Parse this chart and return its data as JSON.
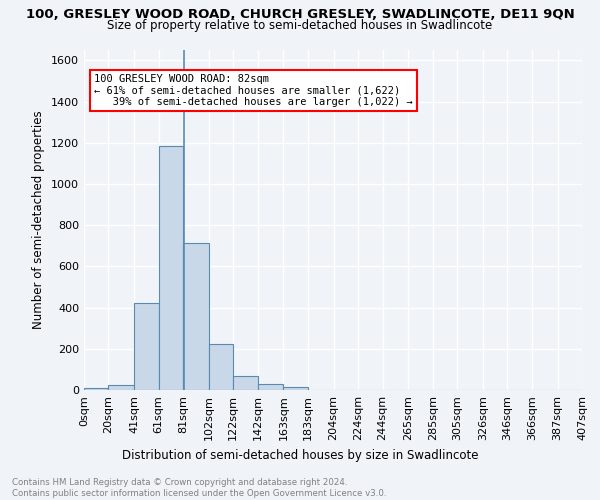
{
  "title": "100, GRESLEY WOOD ROAD, CHURCH GRESLEY, SWADLINCOTE, DE11 9QN",
  "subtitle": "Size of property relative to semi-detached houses in Swadlincote",
  "xlabel": "Distribution of semi-detached houses by size in Swadlincote",
  "ylabel": "Number of semi-detached properties",
  "footer_line1": "Contains HM Land Registry data © Crown copyright and database right 2024.",
  "footer_line2": "Contains public sector information licensed under the Open Government Licence v3.0.",
  "bar_left_edges": [
    0,
    20,
    41,
    61,
    81,
    102,
    122,
    142,
    163,
    183,
    204,
    224,
    244,
    265,
    285,
    305,
    326,
    346,
    366,
    387
  ],
  "bar_widths": [
    20,
    21,
    20,
    20,
    21,
    20,
    20,
    21,
    20,
    21,
    20,
    20,
    21,
    20,
    20,
    21,
    20,
    20,
    21,
    20
  ],
  "bar_heights": [
    10,
    25,
    420,
    1185,
    715,
    225,
    68,
    30,
    15,
    0,
    0,
    0,
    0,
    0,
    0,
    0,
    0,
    0,
    0,
    0
  ],
  "bar_color": "#c8d8e8",
  "bar_edgecolor": "#5a8ab0",
  "tick_labels": [
    "0sqm",
    "20sqm",
    "41sqm",
    "61sqm",
    "81sqm",
    "102sqm",
    "122sqm",
    "142sqm",
    "163sqm",
    "183sqm",
    "204sqm",
    "224sqm",
    "244sqm",
    "265sqm",
    "285sqm",
    "305sqm",
    "326sqm",
    "346sqm",
    "366sqm",
    "387sqm",
    "407sqm"
  ],
  "ylim": [
    0,
    1650
  ],
  "yticks": [
    0,
    200,
    400,
    600,
    800,
    1000,
    1200,
    1400,
    1600
  ],
  "property_line_x": 82,
  "annotation_title": "100 GRESLEY WOOD ROAD: 82sqm",
  "annotation_line1": "← 61% of semi-detached houses are smaller (1,622)",
  "annotation_line2": "   39% of semi-detached houses are larger (1,022) →",
  "background_color": "#f0f4f8",
  "grid_color": "#ffffff"
}
